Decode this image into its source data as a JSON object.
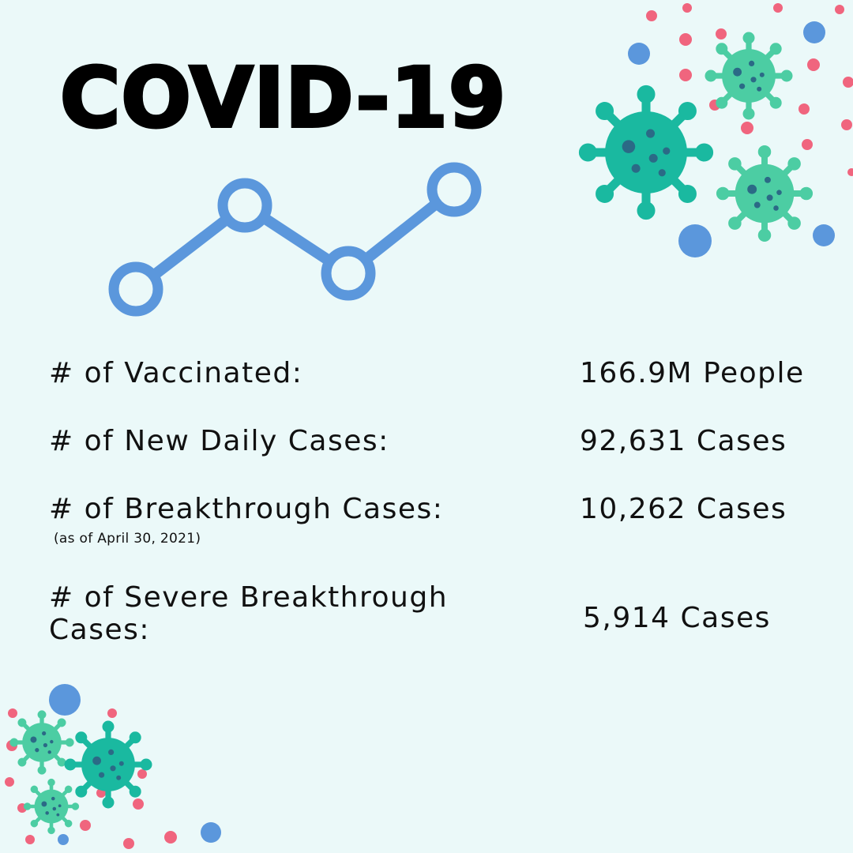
{
  "title": "COVID-19",
  "stats": [
    {
      "label": "# of Vaccinated:",
      "value": "166.9M People"
    },
    {
      "label": "# of New Daily Cases:",
      "value": "92,631 Cases"
    },
    {
      "label": "# of Breakthrough Cases:",
      "note": "(as of April 30, 2021)",
      "value": "10,262 Cases"
    },
    {
      "label": "# of Severe Breakthrough Cases:",
      "value": "5,914 Cases"
    }
  ],
  "colors": {
    "background": "#ebf9f9",
    "trend_line": "#5b97dc",
    "virus_dark": "#1ab9a0",
    "virus_light": "#4ccda3",
    "virus_spots": "#2b6a86",
    "dot_pink": "#f0657e",
    "dot_blue": "#5b97dc"
  },
  "icons": [
    "trend-line-icon",
    "virus-icon"
  ]
}
